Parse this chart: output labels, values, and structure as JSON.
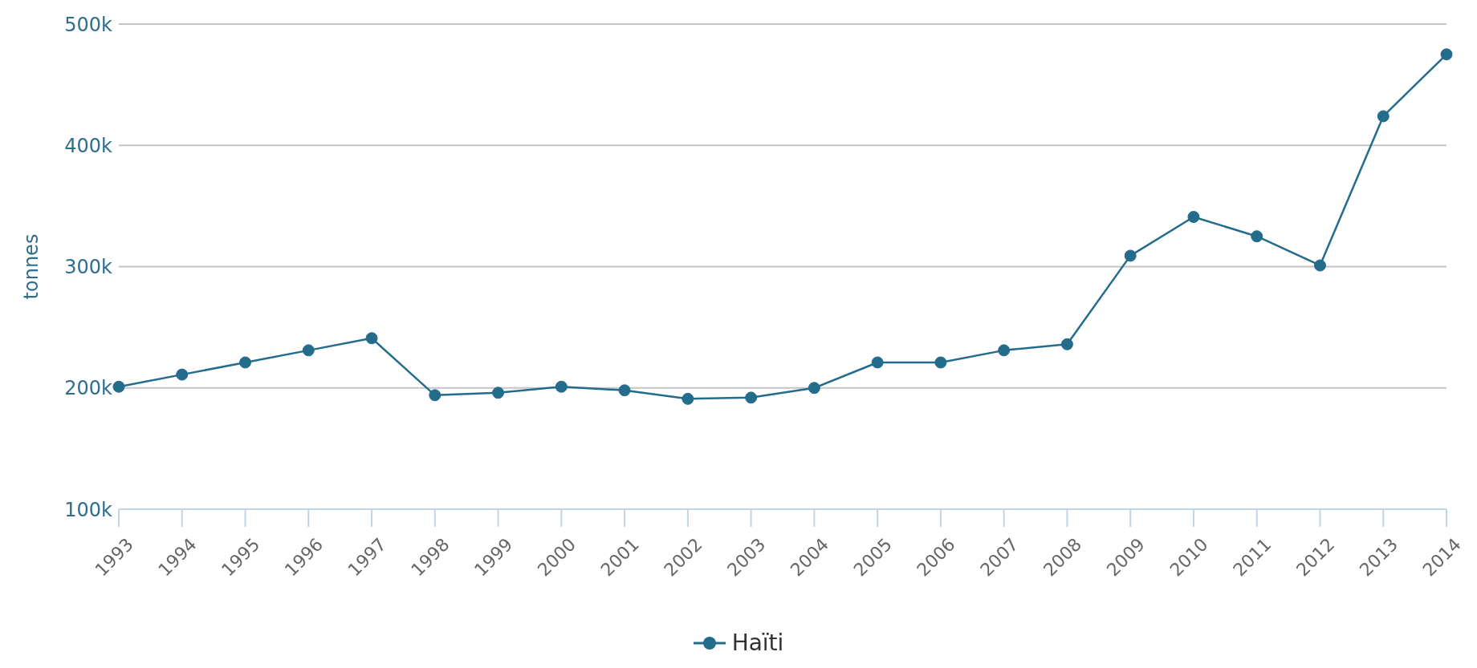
{
  "chart_data": {
    "type": "line",
    "ylabel": "tonnes",
    "categories": [
      "1993",
      "1994",
      "1995",
      "1996",
      "1997",
      "1998",
      "1999",
      "2000",
      "2001",
      "2002",
      "2003",
      "2004",
      "2005",
      "2006",
      "2007",
      "2008",
      "2009",
      "2010",
      "2011",
      "2012",
      "2013",
      "2014"
    ],
    "series": [
      {
        "name": "Haïti",
        "color": "#236c8c",
        "values": [
          201000,
          211000,
          221000,
          231000,
          241000,
          194000,
          196000,
          201000,
          198000,
          191000,
          192000,
          200000,
          221000,
          221000,
          231000,
          236000,
          309000,
          341000,
          325000,
          301000,
          424000,
          475000
        ]
      }
    ],
    "ylim": [
      100000,
      500000
    ],
    "yticks": [
      {
        "value": 100000,
        "label": "100k"
      },
      {
        "value": 200000,
        "label": "200k"
      },
      {
        "value": 300000,
        "label": "300k"
      },
      {
        "value": 400000,
        "label": "400k"
      },
      {
        "value": 500000,
        "label": "500k"
      }
    ],
    "grid": "y",
    "legend": "bottom",
    "marker": "circle",
    "line_style": "solid"
  }
}
